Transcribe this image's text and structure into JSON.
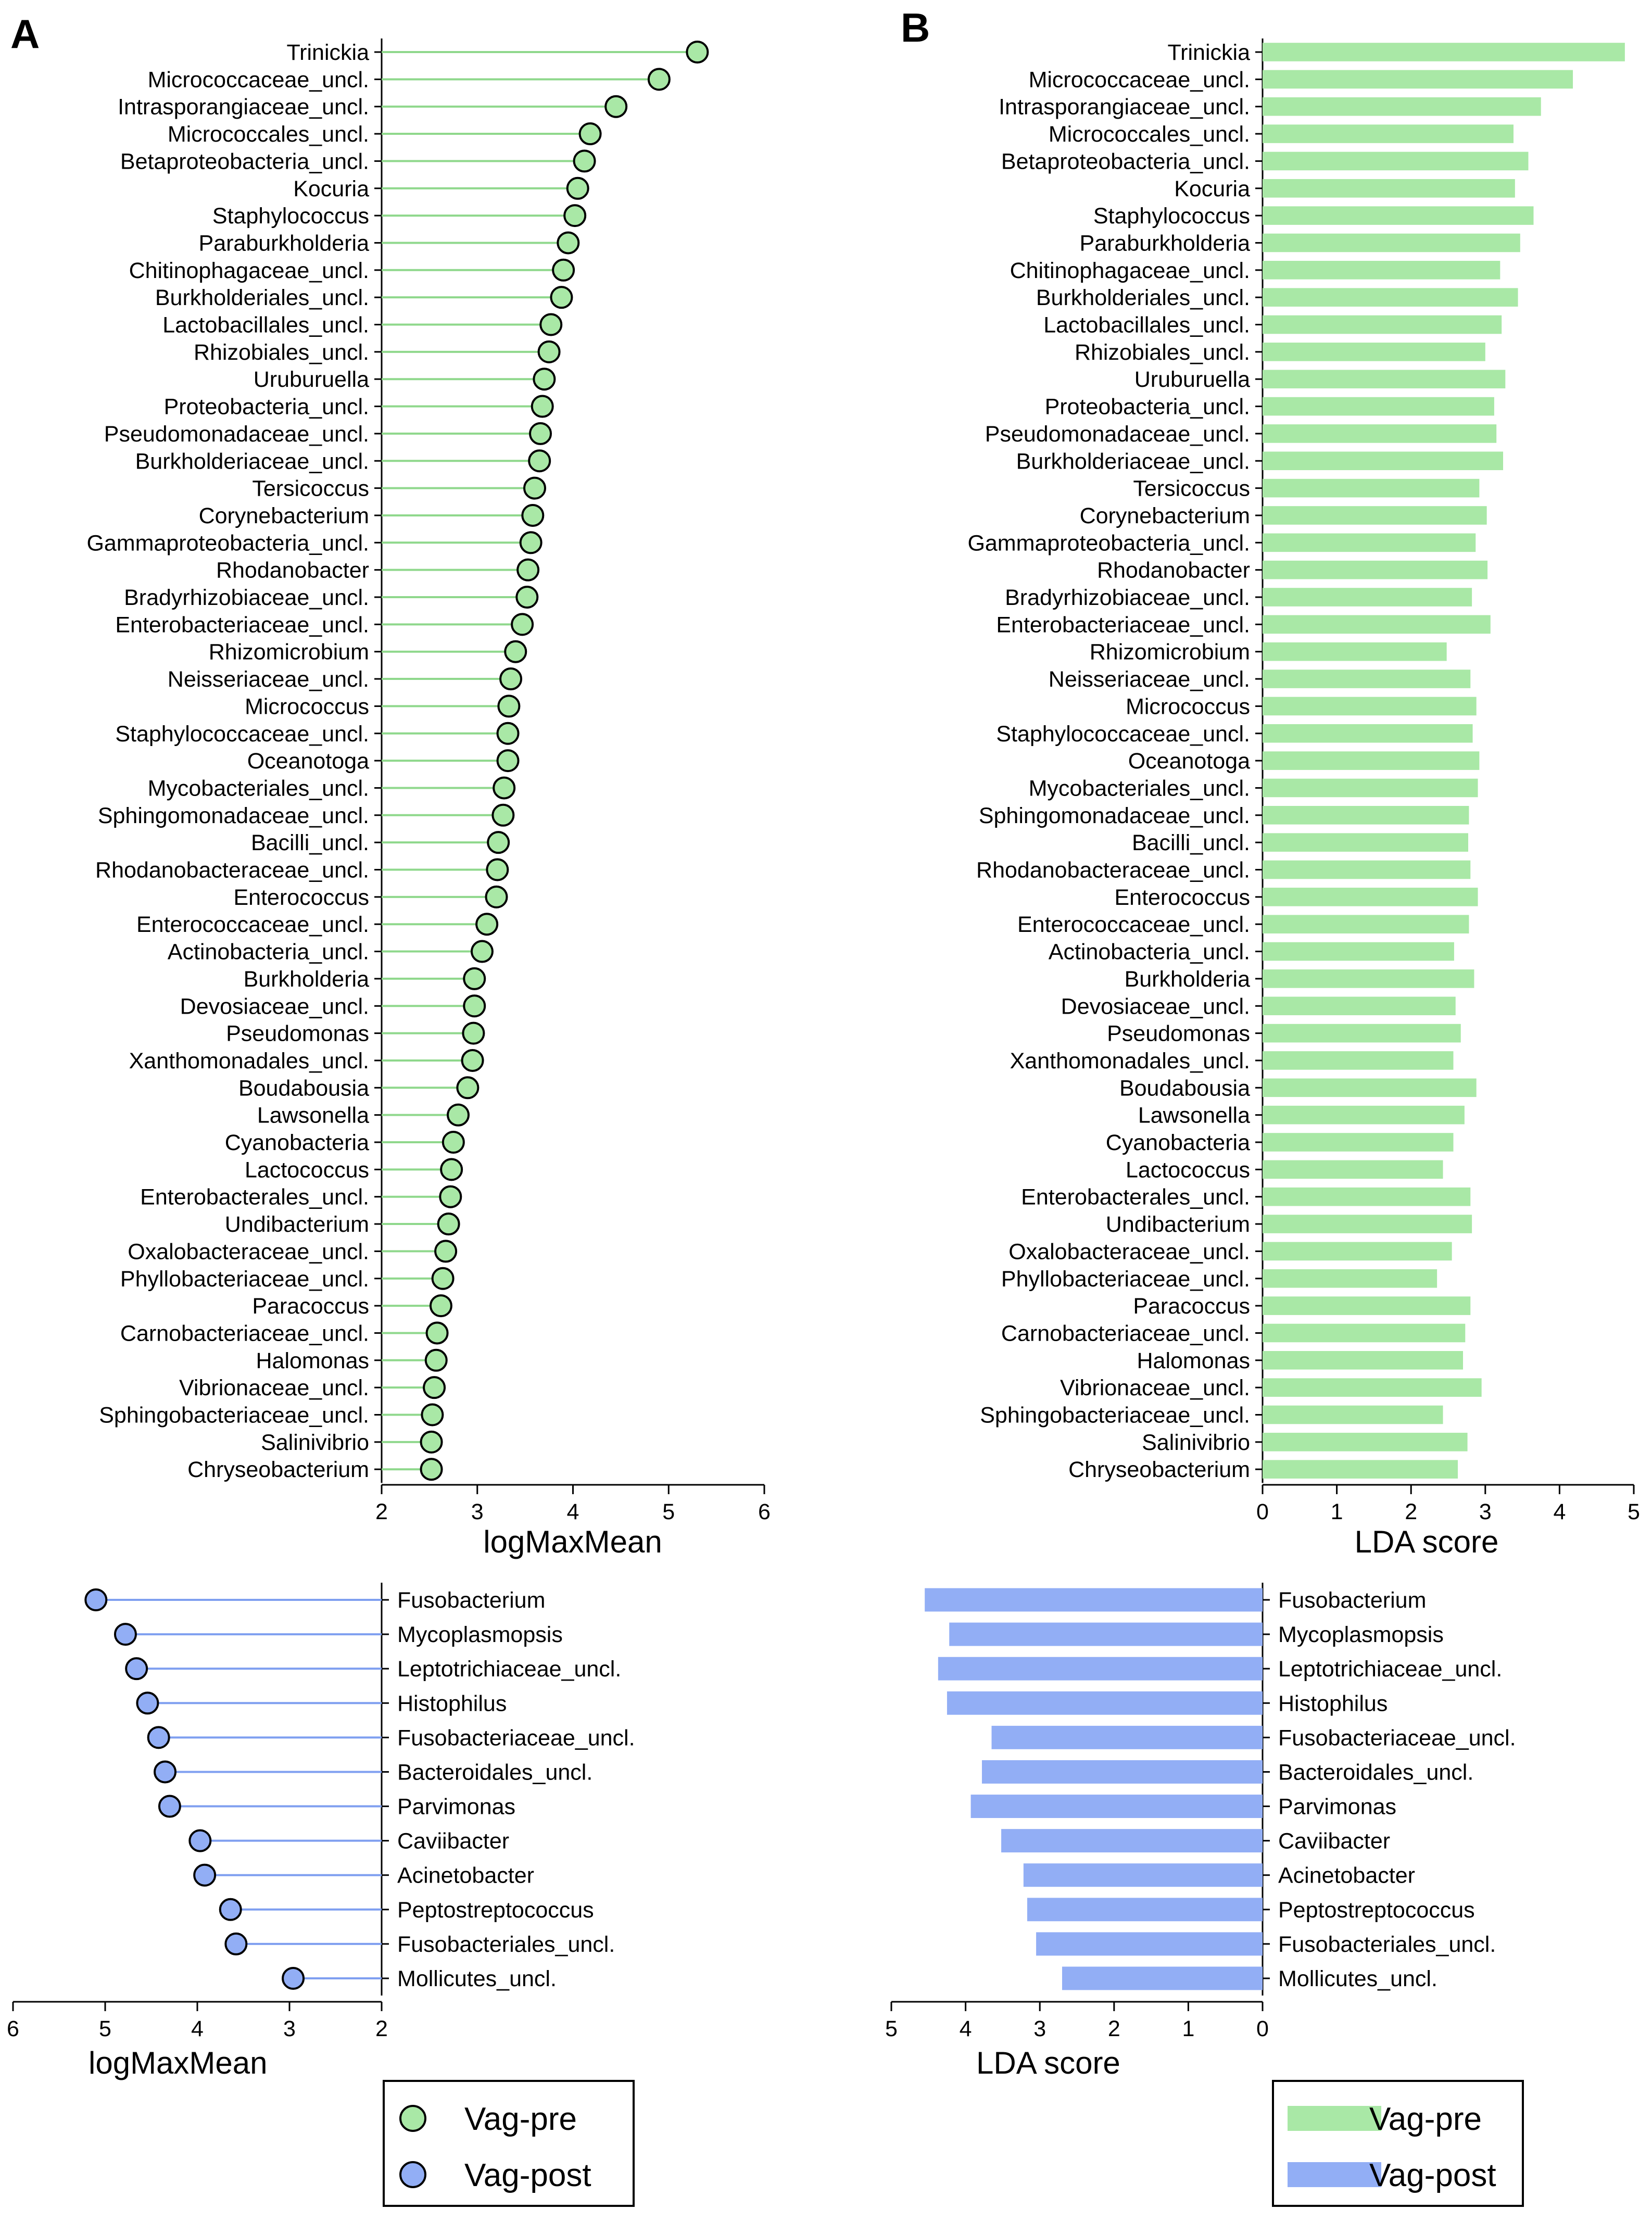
{
  "colors": {
    "pre": "#a9e8a6",
    "pre_line": "#8fd88c",
    "post": "#92aef5",
    "post_line": "#7f9ff0",
    "axis": "#000000"
  },
  "panel_labels": {
    "a": "A",
    "b": "B"
  },
  "chart_data": [
    {
      "id": "A-top",
      "type": "lollipop",
      "group": "Vag-pre",
      "axis_title": "logMaxMean",
      "xlim": [
        2,
        6
      ],
      "ticks": [
        2,
        3,
        4,
        5,
        6
      ],
      "categories": [
        "Trinickia",
        "Micrococcaceae_uncl.",
        "Intrasporangiaceae_uncl.",
        "Micrococcales_uncl.",
        "Betaproteobacteria_uncl.",
        "Kocuria",
        "Staphylococcus",
        "Paraburkholderia",
        "Chitinophagaceae_uncl.",
        "Burkholderiales_uncl.",
        "Lactobacillales_uncl.",
        "Rhizobiales_uncl.",
        "Uruburuella",
        "Proteobacteria_uncl.",
        "Pseudomonadaceae_uncl.",
        "Burkholderiaceae_uncl.",
        "Tersicoccus",
        "Corynebacterium",
        "Gammaproteobacteria_uncl.",
        "Rhodanobacter",
        "Bradyrhizobiaceae_uncl.",
        "Enterobacteriaceae_uncl.",
        "Rhizomicrobium",
        "Neisseriaceae_uncl.",
        "Micrococcus",
        "Staphylococcaceae_uncl.",
        "Oceanotoga",
        "Mycobacteriales_uncl.",
        "Sphingomonadaceae_uncl.",
        "Bacilli_uncl.",
        "Rhodanobacteraceae_uncl.",
        "Enterococcus",
        "Enterococcaceae_uncl.",
        "Actinobacteria_uncl.",
        "Burkholderia",
        "Devosiaceae_uncl.",
        "Pseudomonas",
        "Xanthomonadales_uncl.",
        "Boudabousia",
        "Lawsonella",
        "Cyanobacteria",
        "Lactococcus",
        "Enterobacterales_uncl.",
        "Undibacterium",
        "Oxalobacteraceae_uncl.",
        "Phyllobacteriaceae_uncl.",
        "Paracoccus",
        "Carnobacteriaceae_uncl.",
        "Halomonas",
        "Vibrionaceae_uncl.",
        "Sphingobacteriaceae_uncl.",
        "Salinivibrio",
        "Chryseobacterium"
      ],
      "values": [
        5.3,
        4.9,
        4.45,
        4.18,
        4.12,
        4.05,
        4.02,
        3.95,
        3.9,
        3.88,
        3.77,
        3.75,
        3.7,
        3.68,
        3.66,
        3.65,
        3.6,
        3.58,
        3.56,
        3.53,
        3.52,
        3.47,
        3.4,
        3.35,
        3.33,
        3.32,
        3.32,
        3.28,
        3.27,
        3.22,
        3.21,
        3.2,
        3.1,
        3.05,
        2.97,
        2.97,
        2.96,
        2.95,
        2.9,
        2.8,
        2.75,
        2.73,
        2.72,
        2.7,
        2.67,
        2.64,
        2.62,
        2.58,
        2.57,
        2.55,
        2.53,
        2.52,
        2.52
      ]
    },
    {
      "id": "B-top",
      "type": "bar",
      "group": "Vag-pre",
      "axis_title": "LDA score",
      "xlim": [
        0,
        5
      ],
      "ticks": [
        0,
        1,
        2,
        3,
        4,
        5
      ],
      "categories": [
        "Trinickia",
        "Micrococcaceae_uncl.",
        "Intrasporangiaceae_uncl.",
        "Micrococcales_uncl.",
        "Betaproteobacteria_uncl.",
        "Kocuria",
        "Staphylococcus",
        "Paraburkholderia",
        "Chitinophagaceae_uncl.",
        "Burkholderiales_uncl.",
        "Lactobacillales_uncl.",
        "Rhizobiales_uncl.",
        "Uruburuella",
        "Proteobacteria_uncl.",
        "Pseudomonadaceae_uncl.",
        "Burkholderiaceae_uncl.",
        "Tersicoccus",
        "Corynebacterium",
        "Gammaproteobacteria_uncl.",
        "Rhodanobacter",
        "Bradyrhizobiaceae_uncl.",
        "Enterobacteriaceae_uncl.",
        "Rhizomicrobium",
        "Neisseriaceae_uncl.",
        "Micrococcus",
        "Staphylococcaceae_uncl.",
        "Oceanotoga",
        "Mycobacteriales_uncl.",
        "Sphingomonadaceae_uncl.",
        "Bacilli_uncl.",
        "Rhodanobacteraceae_uncl.",
        "Enterococcus",
        "Enterococcaceae_uncl.",
        "Actinobacteria_uncl.",
        "Burkholderia",
        "Devosiaceae_uncl.",
        "Pseudomonas",
        "Xanthomonadales_uncl.",
        "Boudabousia",
        "Lawsonella",
        "Cyanobacteria",
        "Lactococcus",
        "Enterobacterales_uncl.",
        "Undibacterium",
        "Oxalobacteraceae_uncl.",
        "Phyllobacteriaceae_uncl.",
        "Paracoccus",
        "Carnobacteriaceae_uncl.",
        "Halomonas",
        "Vibrionaceae_uncl.",
        "Sphingobacteriaceae_uncl.",
        "Salinivibrio",
        "Chryseobacterium"
      ],
      "values": [
        4.88,
        4.18,
        3.75,
        3.38,
        3.58,
        3.4,
        3.65,
        3.47,
        3.2,
        3.44,
        3.22,
        3.0,
        3.27,
        3.12,
        3.15,
        3.24,
        2.92,
        3.02,
        2.87,
        3.03,
        2.82,
        3.07,
        2.48,
        2.8,
        2.88,
        2.83,
        2.92,
        2.9,
        2.78,
        2.77,
        2.8,
        2.9,
        2.78,
        2.58,
        2.85,
        2.6,
        2.67,
        2.57,
        2.88,
        2.72,
        2.57,
        2.43,
        2.8,
        2.82,
        2.55,
        2.35,
        2.8,
        2.73,
        2.7,
        2.95,
        2.43,
        2.76,
        2.63
      ]
    },
    {
      "id": "A-bottom",
      "type": "lollipop",
      "group": "Vag-post",
      "axis_title": "logMaxMean",
      "xlim": [
        6,
        2
      ],
      "ticks": [
        6,
        5,
        4,
        3,
        2
      ],
      "categories": [
        "Fusobacterium",
        "Mycoplasmopsis",
        "Leptotrichiaceae_uncl.",
        "Histophilus",
        "Fusobacteriaceae_uncl.",
        "Bacteroidales_uncl.",
        "Parvimonas",
        "Caviibacter",
        "Acinetobacter",
        "Peptostreptococcus",
        "Fusobacteriales_uncl.",
        "Mollicutes_uncl."
      ],
      "values": [
        5.1,
        4.78,
        4.66,
        4.54,
        4.42,
        4.35,
        4.3,
        3.97,
        3.92,
        3.64,
        3.58,
        2.96
      ]
    },
    {
      "id": "B-bottom",
      "type": "bar",
      "group": "Vag-post",
      "axis_title": "LDA score",
      "xlim": [
        5,
        0
      ],
      "ticks": [
        5,
        4,
        3,
        2,
        1,
        0
      ],
      "categories": [
        "Fusobacterium",
        "Mycoplasmopsis",
        "Leptotrichiaceae_uncl.",
        "Histophilus",
        "Fusobacteriaceae_uncl.",
        "Bacteroidales_uncl.",
        "Parvimonas",
        "Caviibacter",
        "Acinetobacter",
        "Peptostreptococcus",
        "Fusobacteriales_uncl.",
        "Mollicutes_uncl."
      ],
      "values": [
        4.55,
        4.22,
        4.37,
        4.25,
        3.65,
        3.78,
        3.93,
        3.52,
        3.22,
        3.17,
        3.05,
        2.7
      ]
    }
  ],
  "legends": {
    "left": [
      {
        "label": "Vag-pre",
        "group": "pre"
      },
      {
        "label": "Vag-post",
        "group": "post"
      }
    ],
    "right": [
      {
        "label": "Vag-pre",
        "group": "pre"
      },
      {
        "label": "Vag-post",
        "group": "post"
      }
    ]
  }
}
